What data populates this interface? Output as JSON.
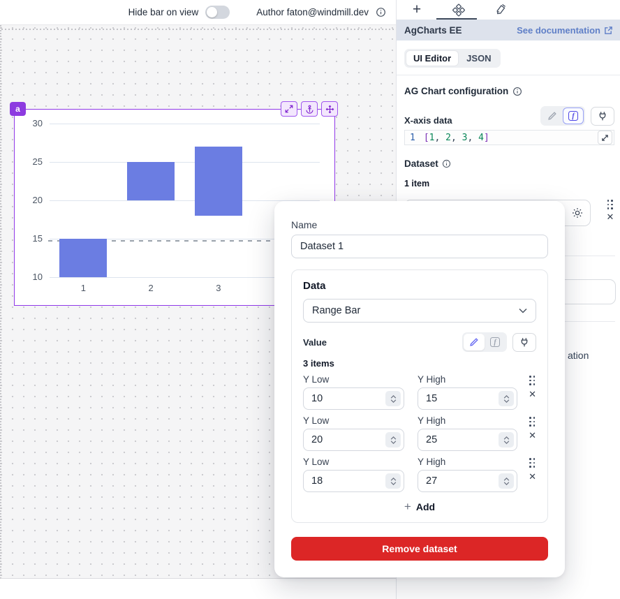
{
  "topbar": {
    "hide_bar_label": "Hide bar on view",
    "author_label": "Author faton@windmill.dev"
  },
  "component": {
    "badge": "a"
  },
  "chart_data": {
    "type": "bar",
    "subtype": "range-bar-vertical",
    "title": "",
    "xlabel": "",
    "ylabel": "",
    "categories": [
      1,
      2,
      3,
      4
    ],
    "series": [
      {
        "name": "Dataset 1",
        "ranges": [
          [
            10,
            15
          ],
          [
            20,
            25
          ],
          [
            18,
            27
          ]
        ]
      }
    ],
    "yticks": [
      10,
      15,
      20,
      25,
      30
    ],
    "ylim": [
      10,
      30
    ],
    "grid": true,
    "legend": false,
    "bar_color": "#6b7de2",
    "crosshair_value": 14.8
  },
  "panel": {
    "title": "AgCharts EE",
    "doc_link_label": "See documentation",
    "tabs": {
      "ui_editor": "UI Editor",
      "json": "JSON"
    },
    "section_title": "AG Chart configuration",
    "xaxis_label": "X-axis data",
    "code": {
      "line_number": "1",
      "tokens": [
        {
          "t": "[",
          "c": "bracket"
        },
        {
          "t": "1",
          "c": "num"
        },
        {
          "t": ", ",
          "c": "plain"
        },
        {
          "t": "2",
          "c": "num"
        },
        {
          "t": ", ",
          "c": "plain"
        },
        {
          "t": "3",
          "c": "num"
        },
        {
          "t": ", ",
          "c": "plain"
        },
        {
          "t": "4",
          "c": "num"
        },
        {
          "t": "]",
          "c": "bracket"
        }
      ]
    },
    "dataset_label": "Dataset",
    "dataset_count": "1 item",
    "partial_text": "ation",
    "f_icon_glyph": "f"
  },
  "modal": {
    "name_label": "Name",
    "name_value": "Dataset 1",
    "data_label": "Data",
    "data_type_value": "Range Bar",
    "value_label": "Value",
    "items_count": "3 items",
    "rows": [
      {
        "low_label": "Y Low",
        "high_label": "Y High",
        "low": "10",
        "high": "15"
      },
      {
        "low_label": "Y Low",
        "high_label": "Y High",
        "low": "20",
        "high": "25"
      },
      {
        "low_label": "Y Low",
        "high_label": "Y High",
        "low": "18",
        "high": "27"
      }
    ],
    "add_label": "Add",
    "remove_label": "Remove dataset"
  }
}
